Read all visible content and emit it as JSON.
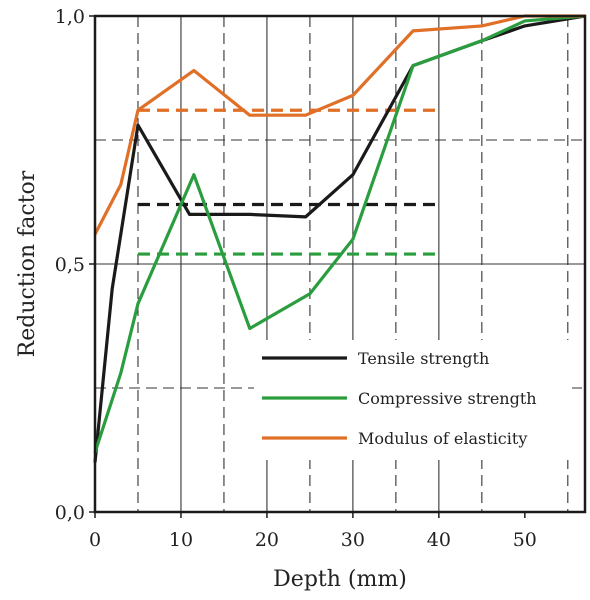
{
  "chart_data": {
    "type": "line",
    "title": "",
    "xlabel": "Depth (mm)",
    "ylabel": "Reduction factor",
    "xlim": [
      0,
      57
    ],
    "ylim": [
      0,
      1
    ],
    "x_ticks": [
      0,
      10,
      20,
      30,
      40,
      50
    ],
    "x_tick_labels": [
      "0",
      "10",
      "20",
      "30",
      "40",
      "50"
    ],
    "y_ticks": [
      0,
      0.5,
      1
    ],
    "y_tick_labels": [
      "0,0",
      "0,5",
      "1,0"
    ],
    "grid": {
      "solid_x": [
        10,
        20,
        30,
        40,
        57
      ],
      "dashed_x": [
        5,
        15,
        25,
        35,
        45,
        55
      ],
      "solid_y": [
        0.5
      ],
      "dashed_y": [
        0.25,
        0.75
      ]
    },
    "legend_position": "lower-right",
    "series": [
      {
        "name": "Tensile strength",
        "color": "#1a1a1a",
        "x": [
          0,
          2,
          5,
          11,
          18,
          24.5,
          30,
          37,
          45,
          50,
          57
        ],
        "y": [
          0.1,
          0.45,
          0.78,
          0.6,
          0.6,
          0.595,
          0.68,
          0.9,
          0.95,
          0.98,
          1.0
        ],
        "average": 0.62,
        "average_x_range": [
          5,
          40
        ]
      },
      {
        "name": "Compressive strength",
        "color": "#2a9e3f",
        "x": [
          0,
          3,
          5,
          11.5,
          18,
          25,
          30,
          37,
          45,
          50,
          57
        ],
        "y": [
          0.12,
          0.28,
          0.42,
          0.68,
          0.37,
          0.44,
          0.55,
          0.9,
          0.95,
          0.99,
          1.0
        ],
        "average": 0.52,
        "average_x_range": [
          5,
          40
        ]
      },
      {
        "name": "Modulus of elasticity",
        "color": "#e07027",
        "x": [
          0,
          3,
          5,
          11.5,
          18,
          24.5,
          30,
          37,
          45,
          50,
          57
        ],
        "y": [
          0.56,
          0.66,
          0.81,
          0.89,
          0.8,
          0.8,
          0.84,
          0.97,
          0.98,
          1.0,
          1.0
        ],
        "average": 0.81,
        "average_x_range": [
          5,
          40
        ]
      }
    ]
  }
}
